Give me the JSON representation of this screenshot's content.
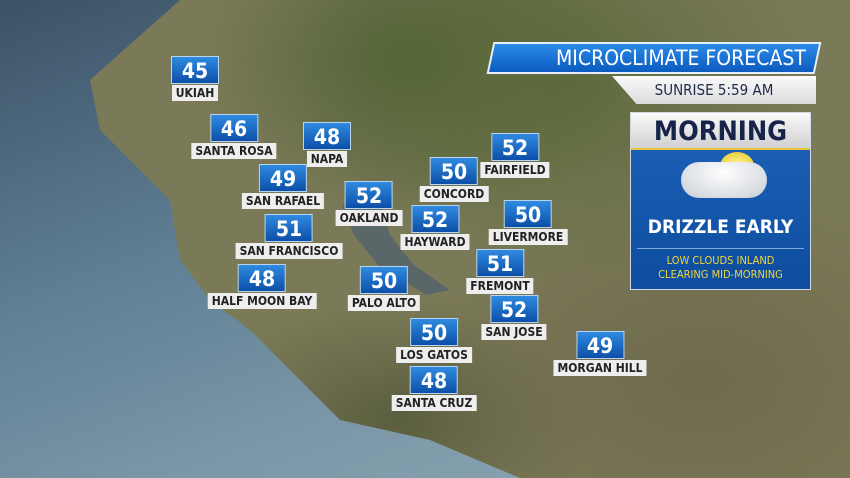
{
  "header": {
    "title": "MICROCLIMATE FORECAST",
    "sunrise": "SUNRISE 5:59 AM"
  },
  "panel": {
    "period": "MORNING",
    "icon": "partly-cloudy-icon",
    "condition": "DRIZZLE EARLY",
    "details": [
      "LOW CLOUDS INLAND",
      "CLEARING MID-MORNING"
    ]
  },
  "colors": {
    "temp_box": "#1a6fd0",
    "label_bg": "#eeeeee",
    "accent_text": "#f0d640",
    "title_bg": "#1a74d8"
  },
  "cities": [
    {
      "name": "UKIAH",
      "temp": "45"
    },
    {
      "name": "SANTA ROSA",
      "temp": "46"
    },
    {
      "name": "NAPA",
      "temp": "48"
    },
    {
      "name": "SAN RAFAEL",
      "temp": "49"
    },
    {
      "name": "CONCORD",
      "temp": "50"
    },
    {
      "name": "FAIRFIELD",
      "temp": "52"
    },
    {
      "name": "OAKLAND",
      "temp": "52"
    },
    {
      "name": "HAYWARD",
      "temp": "52"
    },
    {
      "name": "LIVERMORE",
      "temp": "50"
    },
    {
      "name": "SAN FRANCISCO",
      "temp": "51"
    },
    {
      "name": "FREMONT",
      "temp": "51"
    },
    {
      "name": "HALF MOON BAY",
      "temp": "48"
    },
    {
      "name": "PALO ALTO",
      "temp": "50"
    },
    {
      "name": "SAN JOSE",
      "temp": "52"
    },
    {
      "name": "LOS GATOS",
      "temp": "50"
    },
    {
      "name": "MORGAN HILL",
      "temp": "49"
    },
    {
      "name": "SANTA CRUZ",
      "temp": "48"
    }
  ]
}
